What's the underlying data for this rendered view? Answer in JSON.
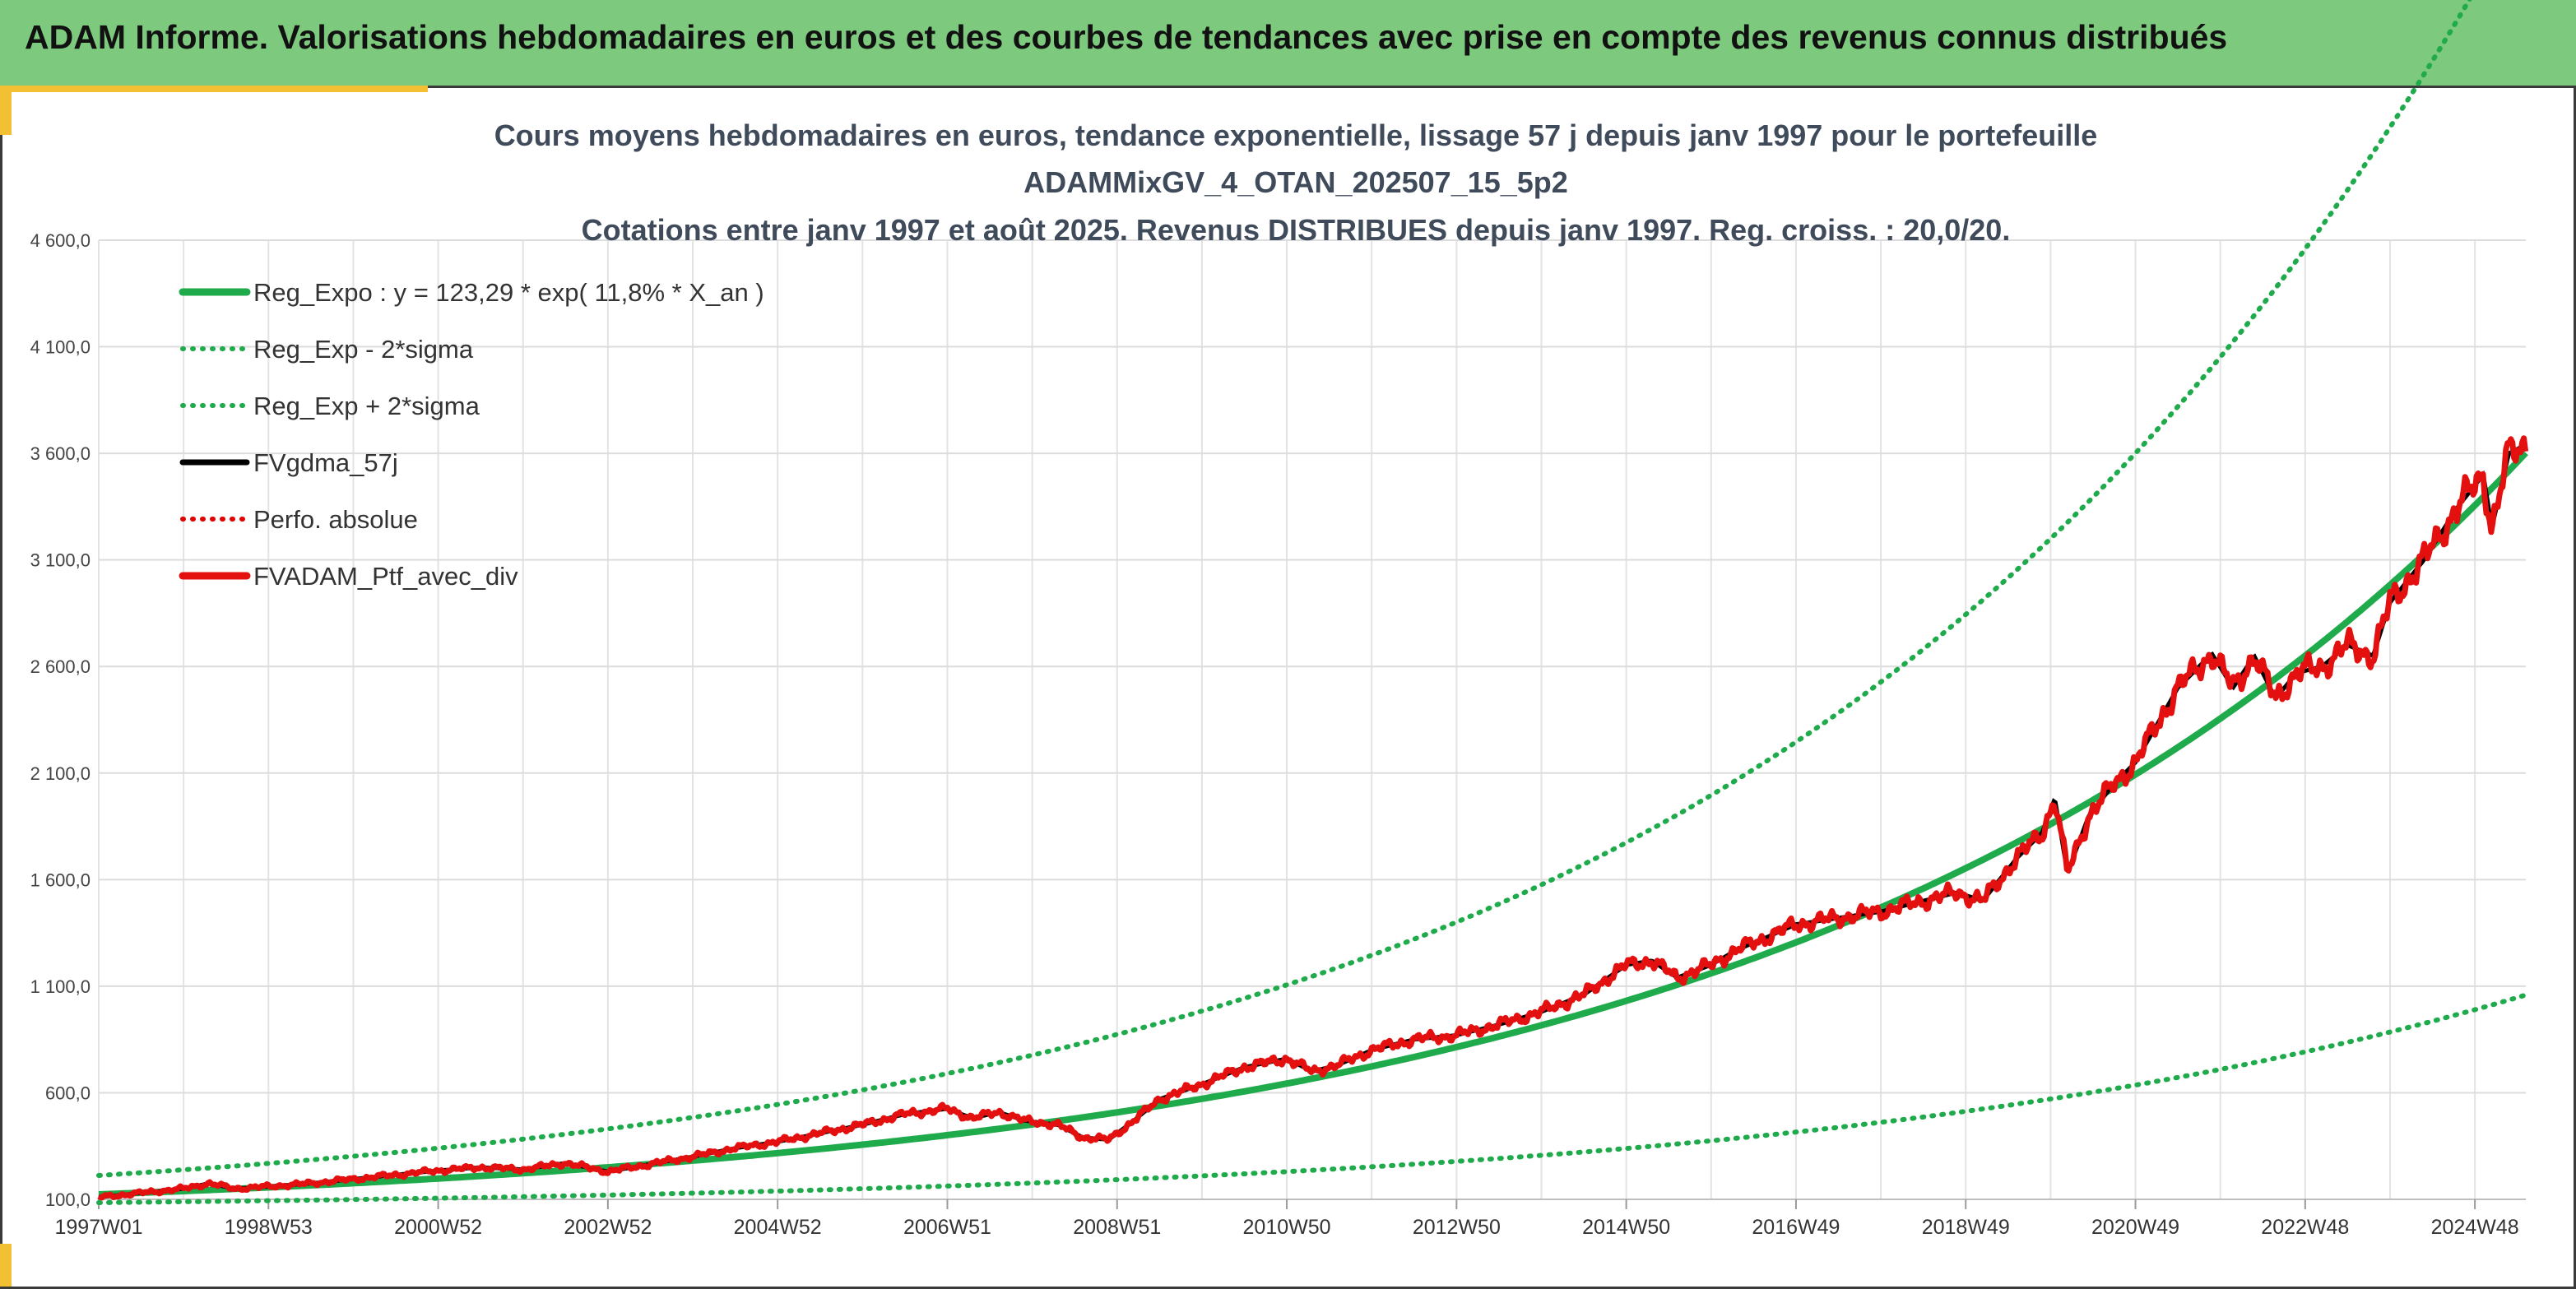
{
  "header": {
    "title": "ADAM Informe. Valorisations hebdomadaires en euros et des courbes de tendances avec prise en compte des revenus connus distribués"
  },
  "chart_data": {
    "type": "line",
    "title": [
      "Cours moyens hebdomadaires en euros, tendance exponentielle, lissage 57 j depuis janv 1997 pour le portefeuille",
      "ADAMMixGV_4_OTAN_202507_15_5p2",
      "Cotations entre janv 1997 et août 2025. Revenus DISTRIBUES depuis janv 1997. Reg. croiss. : 20,0/20."
    ],
    "xlabel": "",
    "ylabel": "",
    "x_range": [
      1997.0,
      2025.6
    ],
    "ylim": [
      100,
      4600
    ],
    "y_ticks": [
      100,
      600,
      1100,
      1600,
      2100,
      2600,
      3100,
      3600,
      4100,
      4600
    ],
    "y_tick_labels": [
      "100,0",
      "600,0",
      "1 100,0",
      "1 600,0",
      "2 100,0",
      "2 600,0",
      "3 100,0",
      "3 600,0",
      "4 100,0",
      "4 600,0"
    ],
    "x_tick_labels": [
      "1997W01",
      "1998W53",
      "2000W52",
      "2002W52",
      "2004W52",
      "2006W51",
      "2008W51",
      "2010W50",
      "2012W50",
      "2014W50",
      "2016W49",
      "2018W49",
      "2020W49",
      "2022W48",
      "2024W48"
    ],
    "x_tick_positions": [
      1997.0,
      1999.0,
      2001.0,
      2003.0,
      2005.0,
      2007.0,
      2009.0,
      2011.0,
      2013.0,
      2015.0,
      2017.0,
      2019.0,
      2021.0,
      2023.0,
      2025.0
    ],
    "grid": true,
    "legend_position": "top-left",
    "regression": {
      "a": 123.29,
      "rate": 0.118,
      "x0": 1997.0,
      "sigma_factor": 0.72
    },
    "series": [
      {
        "name": "Reg_Expo : y = 123,29 * exp( 11,8% *  X_an )",
        "color": "#1faa4b",
        "style": "solid-thick",
        "kind": "reg"
      },
      {
        "name": "Reg_Exp - 2*sigma",
        "color": "#1faa4b",
        "style": "dotted",
        "kind": "reg_minus"
      },
      {
        "name": "Reg_Exp + 2*sigma",
        "color": "#1faa4b",
        "style": "dotted",
        "kind": "reg_plus"
      },
      {
        "name": "FVgdma_57j",
        "color": "#000000",
        "style": "solid",
        "kind": "smooth"
      },
      {
        "name": "Perfo. absolue",
        "color": "#e00000",
        "style": "dotted",
        "kind": "none"
      },
      {
        "name": "FVADAM_Ptf_avec_div",
        "color": "#e41010",
        "style": "solid-thick",
        "kind": "main",
        "x": [
          1997.0,
          1997.5,
          1998.0,
          1998.3,
          1998.6,
          1999.0,
          1999.5,
          2000.0,
          2000.5,
          2001.0,
          2001.5,
          2002.0,
          2002.5,
          2003.0,
          2003.5,
          2004.0,
          2004.5,
          2005.0,
          2005.5,
          2006.0,
          2006.5,
          2007.0,
          2007.3,
          2007.6,
          2007.9,
          2008.3,
          2008.6,
          2008.9,
          2009.2,
          2009.5,
          2010.0,
          2010.5,
          2011.0,
          2011.3,
          2011.6,
          2012.0,
          2012.5,
          2013.0,
          2013.5,
          2014.0,
          2014.5,
          2015.0,
          2015.3,
          2015.6,
          2016.0,
          2016.3,
          2016.6,
          2017.0,
          2017.5,
          2018.0,
          2018.5,
          2018.9,
          2019.2,
          2019.6,
          2019.9,
          2020.05,
          2020.2,
          2020.45,
          2020.75,
          2021.0,
          2021.5,
          2021.9,
          2022.15,
          2022.4,
          2022.65,
          2022.9,
          2023.2,
          2023.5,
          2023.8,
          2024.0,
          2024.4,
          2024.8,
          2025.1,
          2025.2,
          2025.4,
          2025.6
        ],
        "y": [
          110,
          130,
          150,
          175,
          150,
          160,
          175,
          195,
          215,
          235,
          250,
          240,
          270,
          230,
          265,
          300,
          340,
          370,
          410,
          450,
          500,
          525,
          480,
          510,
          470,
          450,
          390,
          380,
          470,
          570,
          640,
          720,
          760,
          700,
          730,
          800,
          850,
          870,
          920,
          980,
          1060,
          1200,
          1220,
          1140,
          1200,
          1270,
          1320,
          1390,
          1420,
          1450,
          1500,
          1540,
          1500,
          1700,
          1820,
          1980,
          1630,
          1900,
          2050,
          2150,
          2500,
          2660,
          2500,
          2650,
          2450,
          2570,
          2600,
          2700,
          2650,
          2900,
          3100,
          3350,
          3500,
          3250,
          3600,
          3640
        ]
      }
    ]
  }
}
